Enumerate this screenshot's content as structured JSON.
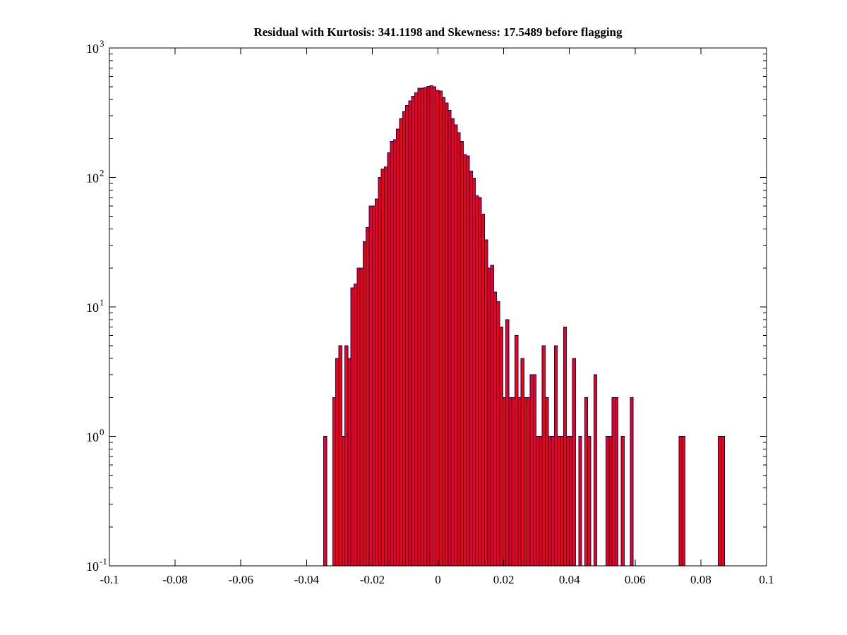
{
  "title": "Residual with Kurtosis: 341.1198 and Skewness: 17.5489 before flagging",
  "chart_data": {
    "type": "bar",
    "subtype": "histogram",
    "title": "Residual with Kurtosis: 341.1198 and Skewness: 17.5489 before flagging",
    "xlabel": "",
    "ylabel": "",
    "xlim": [
      -0.1,
      0.1
    ],
    "y_scale": "log10",
    "ylim_exponents": [
      -1,
      3
    ],
    "grid": false,
    "legend": null,
    "x_tick_values": [
      -0.1,
      -0.08,
      -0.06,
      -0.04,
      -0.02,
      0,
      0.02,
      0.04,
      0.06,
      0.08,
      0.1
    ],
    "x_tick_labels": [
      "-0.1",
      "-0.08",
      "-0.06",
      "-0.04",
      "-0.02",
      "0",
      "0.02",
      "0.04",
      "0.06",
      "0.08",
      "0.1"
    ],
    "y_tick_exponents": [
      -1,
      0,
      1,
      2,
      3
    ],
    "y_tick_base": "10",
    "y_minor_multipliers": [
      2,
      3,
      4,
      5,
      6,
      7,
      8,
      9
    ],
    "bin_start": -0.0348,
    "bin_width": 0.000924,
    "counts": [
      1,
      0,
      0,
      2,
      4,
      5,
      1,
      5,
      4,
      14,
      15,
      20,
      20,
      32,
      41,
      60,
      60,
      68,
      100,
      116,
      121,
      155,
      190,
      196,
      236,
      285,
      323,
      359,
      390,
      424,
      451,
      490,
      490,
      496,
      505,
      510,
      500,
      470,
      465,
      415,
      375,
      330,
      285,
      255,
      222,
      190,
      150,
      147,
      112,
      99,
      72,
      70,
      52,
      33,
      20,
      21,
      13,
      11,
      7,
      2,
      8,
      2,
      2,
      6,
      2,
      4,
      2,
      2,
      3,
      3,
      1,
      1,
      5,
      2,
      1,
      1,
      5,
      1,
      1,
      7,
      1,
      1,
      4,
      0,
      1,
      0,
      2,
      1,
      0,
      3,
      0,
      0,
      0,
      1,
      1,
      2,
      2,
      0,
      1,
      0,
      0,
      2,
      0,
      0,
      0,
      0,
      0,
      0,
      0,
      0,
      0,
      0,
      0,
      0,
      0,
      0,
      0,
      1,
      1,
      0,
      0,
      0,
      0,
      0,
      0,
      0,
      0,
      0,
      0,
      0,
      1,
      1
    ],
    "colors": {
      "bar_fill": "#fb0000",
      "bar_edge": "#00008b",
      "axis": "#000000",
      "background": "#ffffff"
    }
  }
}
